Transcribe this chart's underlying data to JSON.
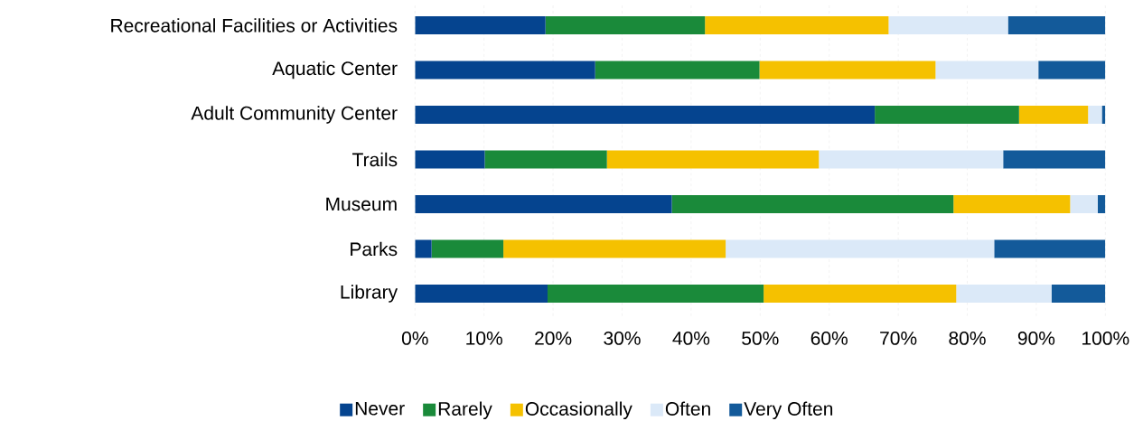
{
  "chart_data": {
    "type": "bar",
    "orientation": "horizontal",
    "stacked": true,
    "categories": [
      "Recreational Facilities or Activities",
      "Aquatic Center",
      "Adult Community Center",
      "Trails",
      "Museum",
      "Parks",
      "Library"
    ],
    "series": [
      {
        "name": "Never",
        "color": "#05448f",
        "values": [
          18.9,
          26.1,
          66.6,
          10.1,
          37.2,
          2.4,
          19.2
        ]
      },
      {
        "name": "Rarely",
        "color": "#1a8a3a",
        "values": [
          23.1,
          23.8,
          20.9,
          17.7,
          40.8,
          10.4,
          31.3
        ]
      },
      {
        "name": "Occasionally",
        "color": "#f5c100",
        "values": [
          26.6,
          25.5,
          10.0,
          30.7,
          16.9,
          32.2,
          27.9
        ]
      },
      {
        "name": "Often",
        "color": "#dbe9f8",
        "values": [
          17.3,
          14.9,
          2.0,
          26.7,
          4.0,
          38.9,
          13.8
        ]
      },
      {
        "name": "Very Often",
        "color": "#135a9a",
        "values": [
          14.1,
          9.7,
          0.5,
          14.8,
          1.1,
          16.1,
          7.8
        ]
      }
    ],
    "xlim": [
      0,
      100
    ],
    "xticks": [
      {
        "value": 0,
        "label": "0%"
      },
      {
        "value": 10,
        "label": "10%"
      },
      {
        "value": 20,
        "label": "20%"
      },
      {
        "value": 30,
        "label": "30%"
      },
      {
        "value": 40,
        "label": "40%"
      },
      {
        "value": 50,
        "label": "50%"
      },
      {
        "value": 60,
        "label": "60%"
      },
      {
        "value": 70,
        "label": "70%"
      },
      {
        "value": 80,
        "label": "80%"
      },
      {
        "value": 90,
        "label": "90%"
      },
      {
        "value": 100,
        "label": "100%"
      }
    ],
    "grid": "x",
    "legend": "bottom"
  }
}
